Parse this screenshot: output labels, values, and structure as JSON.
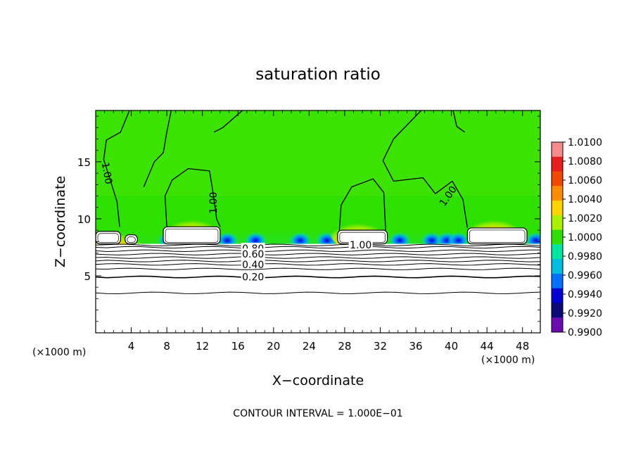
{
  "chart_data": {
    "type": "heatmap",
    "title": "saturation ratio",
    "xlabel": "X−coordinate",
    "ylabel": "Z−coordinate",
    "x_unit_left": "(×1000 m)",
    "x_unit_right": "(×1000 m)",
    "xlim": [
      0,
      50
    ],
    "ylim": [
      0,
      19.5
    ],
    "x_ticks": [
      4,
      8,
      12,
      16,
      20,
      24,
      28,
      32,
      36,
      40,
      44,
      48
    ],
    "y_ticks": [
      5,
      10,
      15
    ],
    "footer": "CONTOUR INTERVAL = 1.000E−01",
    "colorbar": {
      "labels": [
        "1.0100",
        "1.0080",
        "1.0060",
        "1.0040",
        "1.0020",
        "1.0000",
        "0.9980",
        "0.9960",
        "0.9940",
        "0.9920",
        "0.9900"
      ],
      "colors": [
        "#f58c8c",
        "#e81e1e",
        "#f04a00",
        "#ff8c00",
        "#ffd400",
        "#aaf000",
        "#2ee000",
        "#00e6a0",
        "#00bcdc",
        "#0070ff",
        "#0000d0",
        "#0a0a78",
        "#6a0cb0"
      ]
    },
    "contour_labels": [
      {
        "text": "1.00",
        "x": 1.3,
        "z": 14.0,
        "rotate": 80
      },
      {
        "text": "1.00",
        "x": 13.2,
        "z": 11.4,
        "rotate": -90
      },
      {
        "text": "1.00",
        "x": 39.6,
        "z": 12.0,
        "rotate": -55
      },
      {
        "text": "1.00",
        "x": 29.8,
        "z": 7.7,
        "rotate": 0
      },
      {
        "text": "0.80",
        "x": 17.7,
        "z": 7.4,
        "rotate": 0
      },
      {
        "text": "0.60",
        "x": 17.7,
        "z": 6.9,
        "rotate": 0
      },
      {
        "text": "0.40",
        "x": 17.7,
        "z": 6.0,
        "rotate": 0
      },
      {
        "text": "0.20",
        "x": 17.7,
        "z": 4.9,
        "rotate": 0
      }
    ],
    "lower_contours_z": [
      3.5,
      4.9,
      5.6,
      6.0,
      6.3,
      6.6,
      6.9,
      7.2,
      7.5,
      7.7
    ],
    "cloud_regions": [
      {
        "x0": 0.0,
        "x1": 2.8,
        "z0": 7.8,
        "z1": 8.9
      },
      {
        "x0": 3.3,
        "x1": 4.7,
        "z0": 7.8,
        "z1": 8.6
      },
      {
        "x0": 7.6,
        "x1": 14.0,
        "z0": 7.8,
        "z1": 9.3
      },
      {
        "x0": 27.2,
        "x1": 32.8,
        "z0": 7.8,
        "z1": 9.0
      },
      {
        "x0": 41.8,
        "x1": 48.5,
        "z0": 7.8,
        "z1": 9.2
      }
    ],
    "hot_spots": [
      {
        "x": 10.8,
        "z": 9.5
      },
      {
        "x": 44.8,
        "z": 9.5
      },
      {
        "x": 29.5,
        "z": 9.2
      },
      {
        "x": 2.2,
        "z": 8.3
      }
    ],
    "cold_spots": [
      {
        "x": 8.2
      },
      {
        "x": 14.8
      },
      {
        "x": 18.0
      },
      {
        "x": 23.0
      },
      {
        "x": 26.0
      },
      {
        "x": 34.2
      },
      {
        "x": 37.8
      },
      {
        "x": 39.5
      },
      {
        "x": 40.8
      },
      {
        "x": 49.5
      }
    ]
  }
}
